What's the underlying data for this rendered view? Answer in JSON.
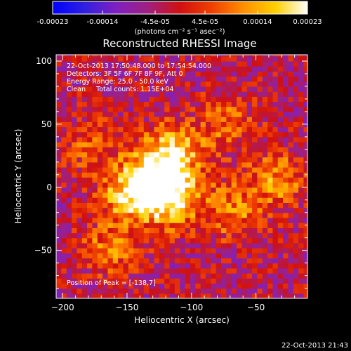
{
  "colorbar": {
    "tick_labels": [
      "-0.00023",
      "-0.00014",
      "-4.5e-05",
      "4.5e-05",
      "0.00014",
      "0.00023"
    ],
    "tick_values": [
      -0.00023,
      -0.00014,
      -4.5e-05,
      4.5e-05,
      0.00014,
      0.00023
    ],
    "range": [
      -0.00023,
      0.00023
    ],
    "unit_label": "(photons cm⁻² s⁻¹ asec⁻²)",
    "colors": [
      "#0000ff",
      "#3020e0",
      "#8020c0",
      "#a02080",
      "#d01010",
      "#f04000",
      "#ff9000",
      "#ffd000",
      "#ffffff"
    ]
  },
  "chart_data": {
    "type": "heatmap",
    "title": "Reconstructed RHESSI Image",
    "xlabel": "Heliocentric X (arcsec)",
    "ylabel": "Heliocentric Y (arcsec)",
    "xlim": [
      -205,
      -10
    ],
    "ylim": [
      -88,
      105
    ],
    "x_ticks": [
      -200,
      -150,
      -100,
      -50
    ],
    "y_ticks": [
      -50,
      0,
      50,
      100
    ],
    "x_tick_labels": [
      "−200",
      "−150",
      "−100",
      "−50"
    ],
    "y_tick_labels": [
      "−50",
      "0",
      "50",
      "100"
    ],
    "peak": {
      "x": -138,
      "y": 7
    },
    "sources": [
      {
        "x": -118,
        "y": -10,
        "value": 0.00023
      },
      {
        "x": -130,
        "y": 8,
        "value": 0.0002
      },
      {
        "x": -150,
        "y": -8,
        "value": 0.00018
      },
      {
        "x": -115,
        "y": 28,
        "value": 0.00016
      },
      {
        "x": -70,
        "y": -20,
        "value": 0.00013
      },
      {
        "x": -35,
        "y": 5,
        "value": 0.00014
      },
      {
        "x": -165,
        "y": -50,
        "value": 0.00012
      },
      {
        "x": -180,
        "y": 30,
        "value": 9e-05
      },
      {
        "x": -75,
        "y": 50,
        "value": 0.0001
      }
    ],
    "annotations": [
      "22-Oct-2013 17:50:48.000 to 17:54:54.000",
      "Detectors: 3F 5F 6F 7F 8F 9F, Att 0",
      "Energy Range: 25.0 - 50.0 keV",
      "Clean     Total counts: 1.15E+04"
    ],
    "peak_label": "Position of Peak = [-138,7]"
  },
  "footer": {
    "timestamp": "22-Oct-2013 21:43"
  }
}
